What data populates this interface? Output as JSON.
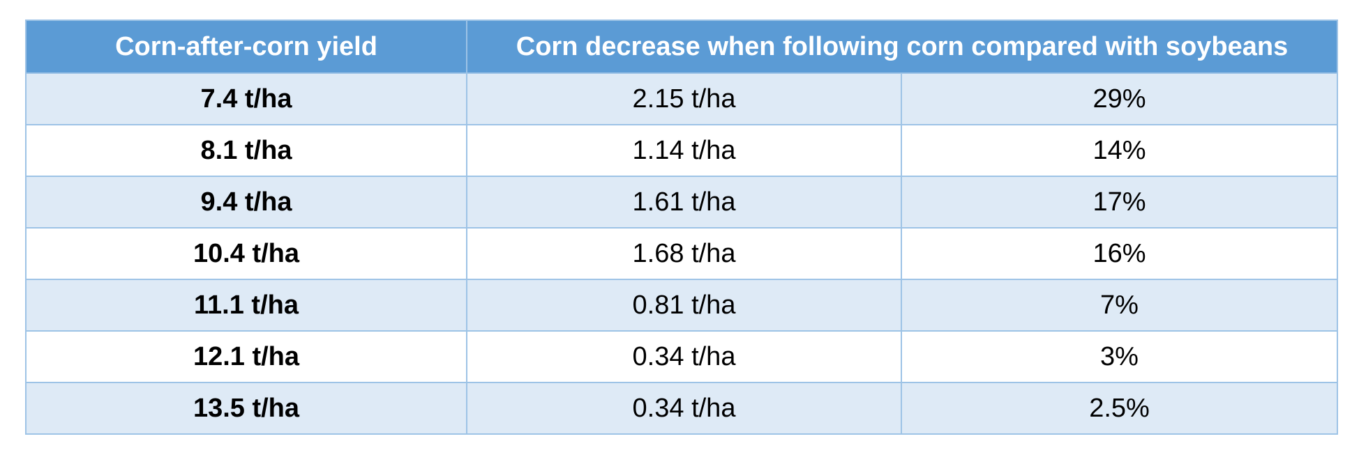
{
  "table": {
    "headers": {
      "col1": "Corn-after-corn yield",
      "col2": "Corn decrease when following corn compared with soybeans"
    },
    "rows": [
      {
        "yield": "7.4 t/ha",
        "decrease": "2.15 t/ha",
        "percent": "29%"
      },
      {
        "yield": "8.1 t/ha",
        "decrease": "1.14 t/ha",
        "percent": "14%"
      },
      {
        "yield": "9.4 t/ha",
        "decrease": "1.61 t/ha",
        "percent": "17%"
      },
      {
        "yield": "10.4 t/ha",
        "decrease": "1.68 t/ha",
        "percent": "16%"
      },
      {
        "yield": "11.1 t/ha",
        "decrease": "0.81 t/ha",
        "percent": "7%"
      },
      {
        "yield": "12.1 t/ha",
        "decrease": "0.34 t/ha",
        "percent": "3%"
      },
      {
        "yield": "13.5 t/ha",
        "decrease": "0.34 t/ha",
        "percent": "2.5%"
      }
    ]
  },
  "colors": {
    "header_bg": "#5b9bd5",
    "band_bg": "#deeaf6",
    "border": "#9dc3e6"
  }
}
